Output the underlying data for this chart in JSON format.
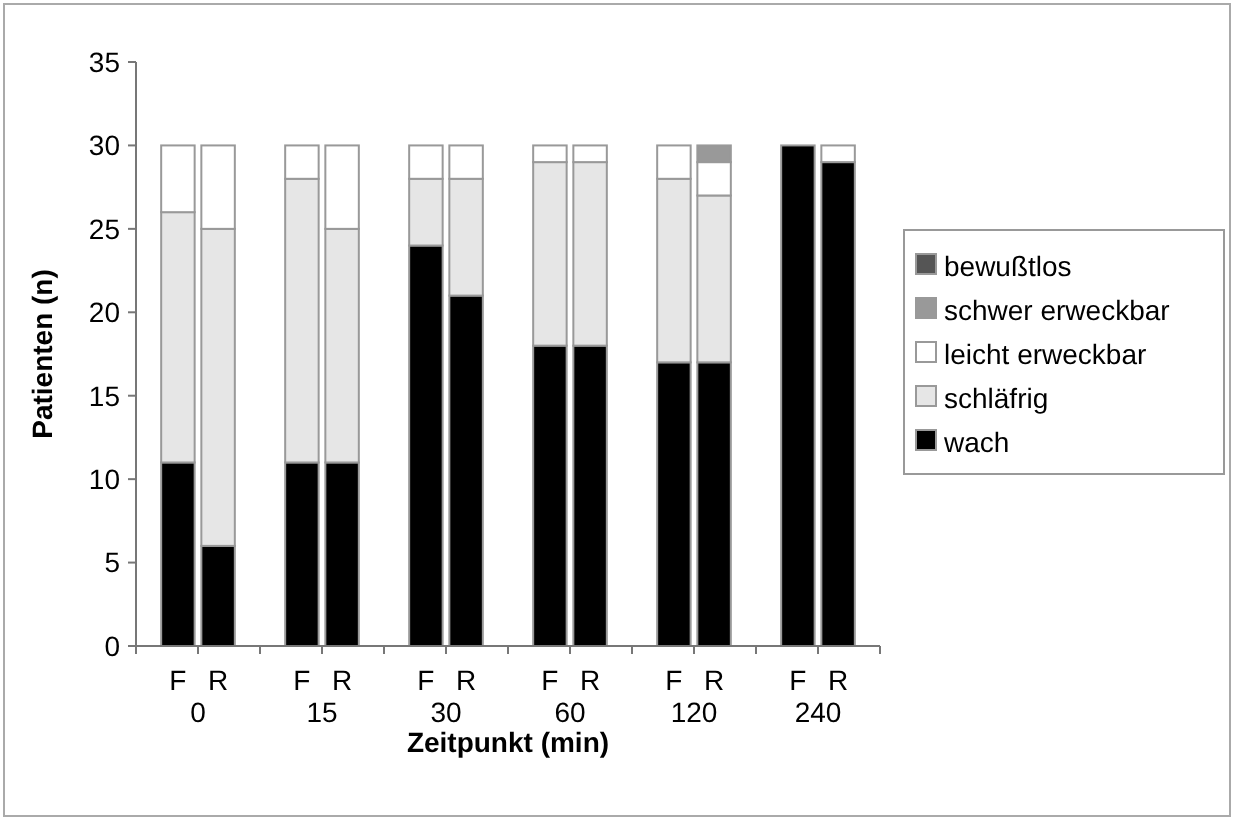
{
  "chart_data": {
    "type": "bar",
    "stacked": true,
    "xlabel": "Zeitpunkt (min)",
    "ylabel": "Patienten (n)",
    "categories": [
      "F",
      "R",
      "F",
      "R",
      "F",
      "R",
      "F",
      "R",
      "F",
      "R",
      "F",
      "R"
    ],
    "annotations": [
      "0",
      "15",
      "30",
      "60",
      "120",
      "240"
    ],
    "ylim": [
      0,
      35
    ],
    "yticks": [
      0,
      5,
      10,
      15,
      20,
      25,
      30,
      35
    ],
    "grid": false,
    "legend": "right",
    "series": [
      {
        "name": "wach",
        "color": "#000000",
        "values": [
          11,
          6,
          11,
          11,
          24,
          21,
          18,
          18,
          17,
          17,
          30,
          29
        ]
      },
      {
        "name": "schläfrig",
        "color": "#e6e6e6",
        "values": [
          15,
          19,
          17,
          14,
          4,
          7,
          11,
          11,
          11,
          10,
          0,
          0
        ]
      },
      {
        "name": "leicht erweckbar",
        "color": "#ffffff",
        "values": [
          4,
          5,
          2,
          5,
          2,
          2,
          1,
          1,
          2,
          2,
          0,
          1
        ]
      },
      {
        "name": "schwer erweckbar",
        "color": "#999999",
        "values": [
          0,
          0,
          0,
          0,
          0,
          0,
          0,
          0,
          0,
          1,
          0,
          0
        ]
      },
      {
        "name": "bewußtlos",
        "color": "#555555",
        "values": [
          0,
          0,
          0,
          0,
          0,
          0,
          0,
          0,
          0,
          0,
          0,
          0
        ]
      }
    ]
  }
}
